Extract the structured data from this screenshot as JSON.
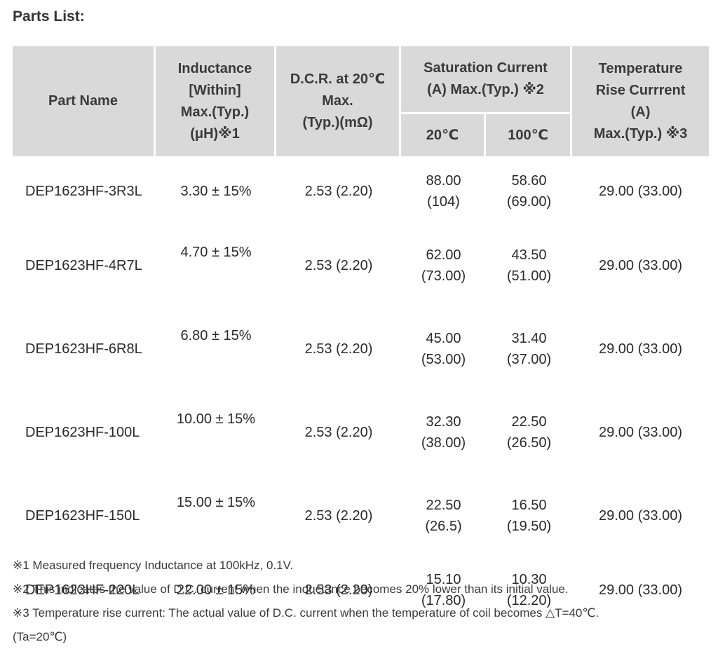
{
  "heading": "Parts List:",
  "table": {
    "headers": {
      "part_name": "Part Name",
      "inductance": [
        "Inductance",
        "[Within]",
        "Max.(Typ.)",
        "(μH)※1"
      ],
      "dcr": [
        "D.C.R. at 20℃",
        "Max.",
        "(Typ.)(mΩ)"
      ],
      "saturation": [
        "Saturation Current",
        "(A) Max.(Typ.) ※2"
      ],
      "sat_20": "20℃",
      "sat_100": "100℃",
      "temp_rise": [
        "Temperature",
        "Rise Currrent",
        "(A)",
        "Max.(Typ.) ※3"
      ]
    },
    "rows": [
      {
        "part": "DEP1623HF-3R3L",
        "inductance": "3.30 ± 15%",
        "dcr": "2.53 (2.20)",
        "sat20": [
          "88.00",
          "(104)"
        ],
        "sat100": [
          "58.60",
          "(69.00)"
        ],
        "temp": "29.00 (33.00)"
      },
      {
        "part": "DEP1623HF-4R7L",
        "inductance": "4.70 ± 15%",
        "dcr": "2.53 (2.20)",
        "sat20": [
          "62.00",
          "(73.00)"
        ],
        "sat100": [
          "43.50",
          "(51.00)"
        ],
        "temp": "29.00 (33.00)"
      },
      {
        "part": "DEP1623HF-6R8L",
        "inductance": "6.80 ± 15%",
        "dcr": "2.53 (2.20)",
        "sat20": [
          "45.00",
          "(53.00)"
        ],
        "sat100": [
          "31.40",
          "(37.00)"
        ],
        "temp": "29.00 (33.00)"
      },
      {
        "part": "DEP1623HF-100L",
        "inductance": "10.00 ± 15%",
        "dcr": "2.53 (2.20)",
        "sat20": [
          "32.30",
          "(38.00)"
        ],
        "sat100": [
          "22.50",
          "(26.50)"
        ],
        "temp": "29.00 (33.00)"
      },
      {
        "part": "DEP1623HF-150L",
        "inductance": "15.00 ± 15%",
        "dcr": "2.53 (2.20)",
        "sat20": [
          "22.50",
          "(26.5)"
        ],
        "sat100": [
          "16.50",
          "(19.50)"
        ],
        "temp": "29.00 (33.00)"
      },
      {
        "part": "DEP1623HF-220L",
        "inductance": "22.00 ± 15%",
        "dcr": "2.53 (2.20)",
        "sat20": [
          "15.10",
          "(17.80)"
        ],
        "sat100": [
          "10.30",
          "(12.20)"
        ],
        "temp": "29.00 (33.00)"
      }
    ]
  },
  "notes": [
    "※1 Measured frequency Inductance at 100kHz, 0.1V.",
    "※2 This indicates the value of D.C. current when the inductance becomes 20% lower than its initial value.",
    "※3 Temperature rise current: The actual value of D.C. current when the temperature of coil becomes △T=40℃.",
    "(Ta=20℃)"
  ]
}
